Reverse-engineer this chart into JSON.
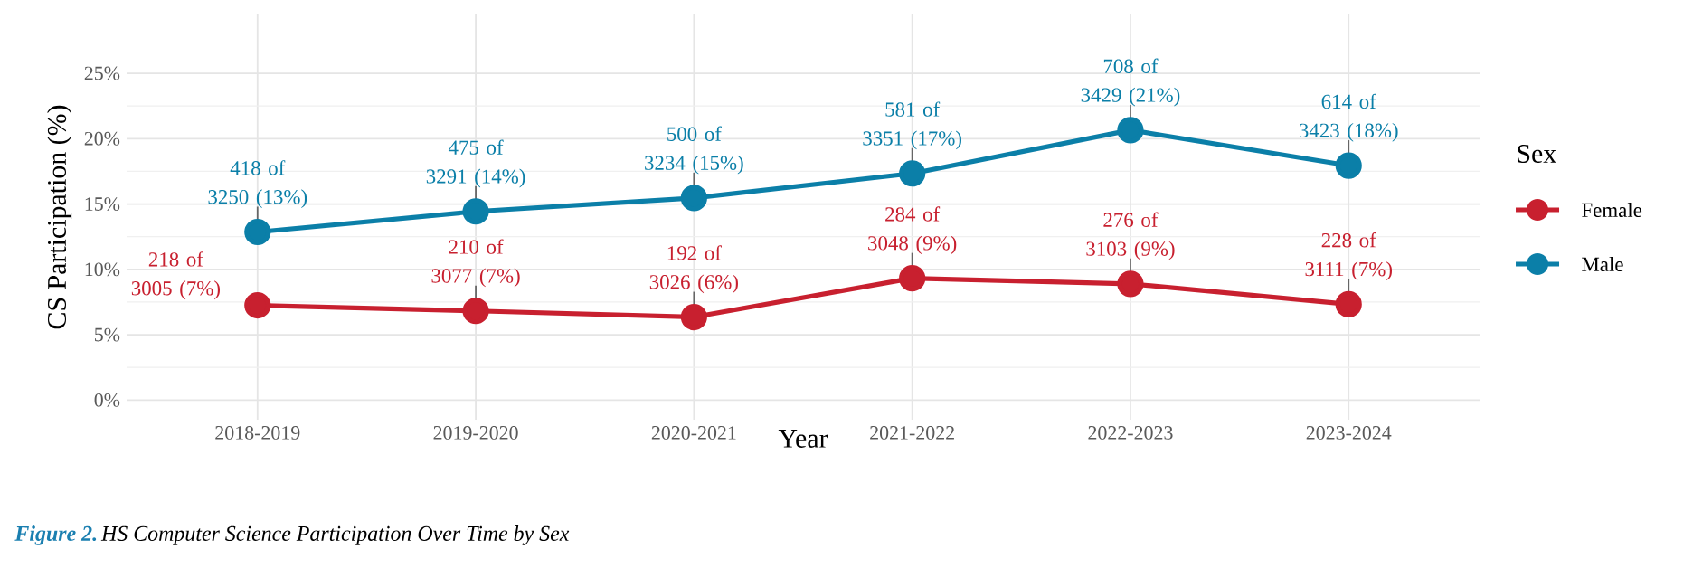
{
  "chart_data": {
    "type": "line",
    "xlabel": "Year",
    "ylabel": "CS Participation (%)",
    "legend_title": "Sex",
    "categories": [
      "2018-2019",
      "2019-2020",
      "2020-2021",
      "2021-2022",
      "2022-2023",
      "2023-2024"
    ],
    "series": [
      {
        "name": "Female",
        "color": "#c8202f",
        "values": [
          7.25,
          6.82,
          6.35,
          9.32,
          8.89,
          7.33
        ],
        "value_labels": [
          "218 of 3005 (7%)",
          "210 of 3077 (7%)",
          "192 of 3026 (6%)",
          "284 of 3048 (9%)",
          "276 of 3103 (9%)",
          "228 of 3111 (7%)"
        ]
      },
      {
        "name": "Male",
        "color": "#0b7fa8",
        "values": [
          12.86,
          14.43,
          15.46,
          17.34,
          20.65,
          17.94
        ],
        "value_labels": [
          "418 of 3250 (13%)",
          "475 of 3291 (14%)",
          "500 of 3234 (15%)",
          "581 of 3351 (17%)",
          "708 of 3429 (21%)",
          "614 of 3423 (18%)"
        ]
      }
    ],
    "ylim": [
      -1.5,
      29.5
    ],
    "yticks": [
      {
        "value": 0,
        "label": "0%"
      },
      {
        "value": 5,
        "label": "5%"
      },
      {
        "value": 10,
        "label": "10%"
      },
      {
        "value": 15,
        "label": "15%"
      },
      {
        "value": 20,
        "label": "20%"
      },
      {
        "value": 25,
        "label": "25%"
      }
    ],
    "grid": true,
    "legend": "right",
    "marker": "circle",
    "line_style": "solid",
    "annotations": [
      "Figure 2.",
      "HS Computer Science Participation Over Time by Sex"
    ]
  }
}
